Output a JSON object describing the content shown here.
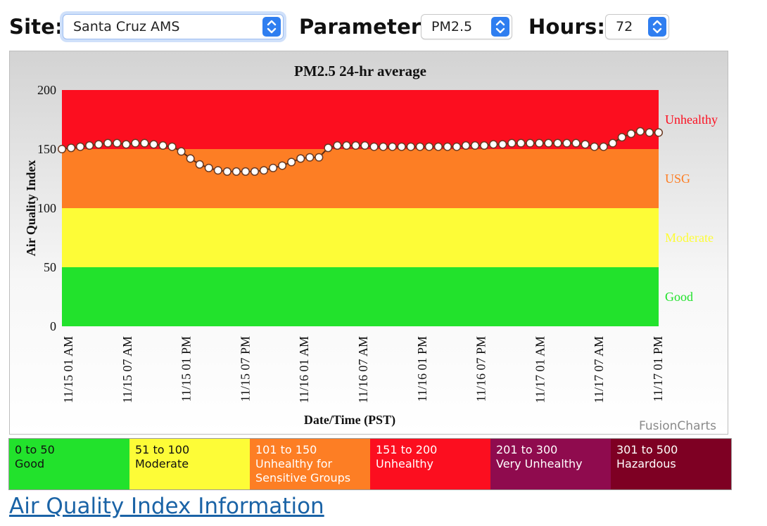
{
  "controls": {
    "site_label": "Site:",
    "site_value": "Santa Cruz AMS",
    "parameter_label": "Parameter:",
    "parameter_value": "PM2.5",
    "hours_label": "Hours:",
    "hours_value": "72",
    "accent_color": "#2f7ef0"
  },
  "chart_data": {
    "type": "line",
    "title": "PM2.5 24-hr average",
    "xlabel": "Date/Time (PST)",
    "ylabel": "Air Quality Index",
    "ylim": [
      0,
      200
    ],
    "yticks": [
      0,
      50,
      100,
      150,
      200
    ],
    "xtick_labels": [
      "11/15 01 AM",
      "11/15 07 AM",
      "11/15 01 PM",
      "11/15 07 PM",
      "11/16 01 AM",
      "11/16 07 AM",
      "11/16 01 PM",
      "11/16 07 PM",
      "11/17 01 AM",
      "11/17 07 AM",
      "11/17 01 PM"
    ],
    "bands": [
      {
        "name": "Good",
        "from": 0,
        "to": 50,
        "color": "#22e22c"
      },
      {
        "name": "Moderate",
        "from": 50,
        "to": 100,
        "color": "#fdfc37"
      },
      {
        "name": "USG",
        "from": 100,
        "to": 150,
        "color": "#fd7e24"
      },
      {
        "name": "Unhealthy",
        "from": 150,
        "to": 200,
        "color": "#fc0e1f"
      }
    ],
    "series": [
      {
        "values": [
          150,
          151,
          152,
          153,
          154,
          155,
          155,
          154,
          155,
          155,
          154,
          153,
          152,
          148,
          142,
          137,
          134,
          132,
          131,
          131,
          131,
          131,
          132,
          134,
          136,
          139,
          142,
          143,
          143,
          151,
          153,
          153,
          153,
          153,
          152,
          152,
          152,
          152,
          152,
          152,
          152,
          152,
          152,
          152,
          153,
          153,
          153,
          154,
          154,
          155,
          155,
          155,
          155,
          155,
          155,
          155,
          155,
          154,
          152,
          152,
          155,
          160,
          163,
          165,
          164,
          164
        ]
      }
    ],
    "grid": false,
    "credit": "FusionCharts"
  },
  "legend": [
    {
      "range": "0 to 50",
      "category": "Good",
      "bg": "#22e22c",
      "fg": "#111111"
    },
    {
      "range": "51 to 100",
      "category": "Moderate",
      "bg": "#fdfc37",
      "fg": "#111111"
    },
    {
      "range": "101 to 150",
      "category": "Unhealthy for Sensitive Groups",
      "bg": "#fd7e24",
      "fg": "#ffffff"
    },
    {
      "range": "151 to 200",
      "category": "Unhealthy",
      "bg": "#fc0e1f",
      "fg": "#ffffff"
    },
    {
      "range": "201 to 300",
      "category": "Very Unhealthy",
      "bg": "#8f0b4e",
      "fg": "#ffffff"
    },
    {
      "range": "301 to 500",
      "category": "Hazardous",
      "bg": "#7e0023",
      "fg": "#ffffff"
    }
  ],
  "link": {
    "text": "Air Quality Index Information",
    "color": "#1a63a6"
  }
}
